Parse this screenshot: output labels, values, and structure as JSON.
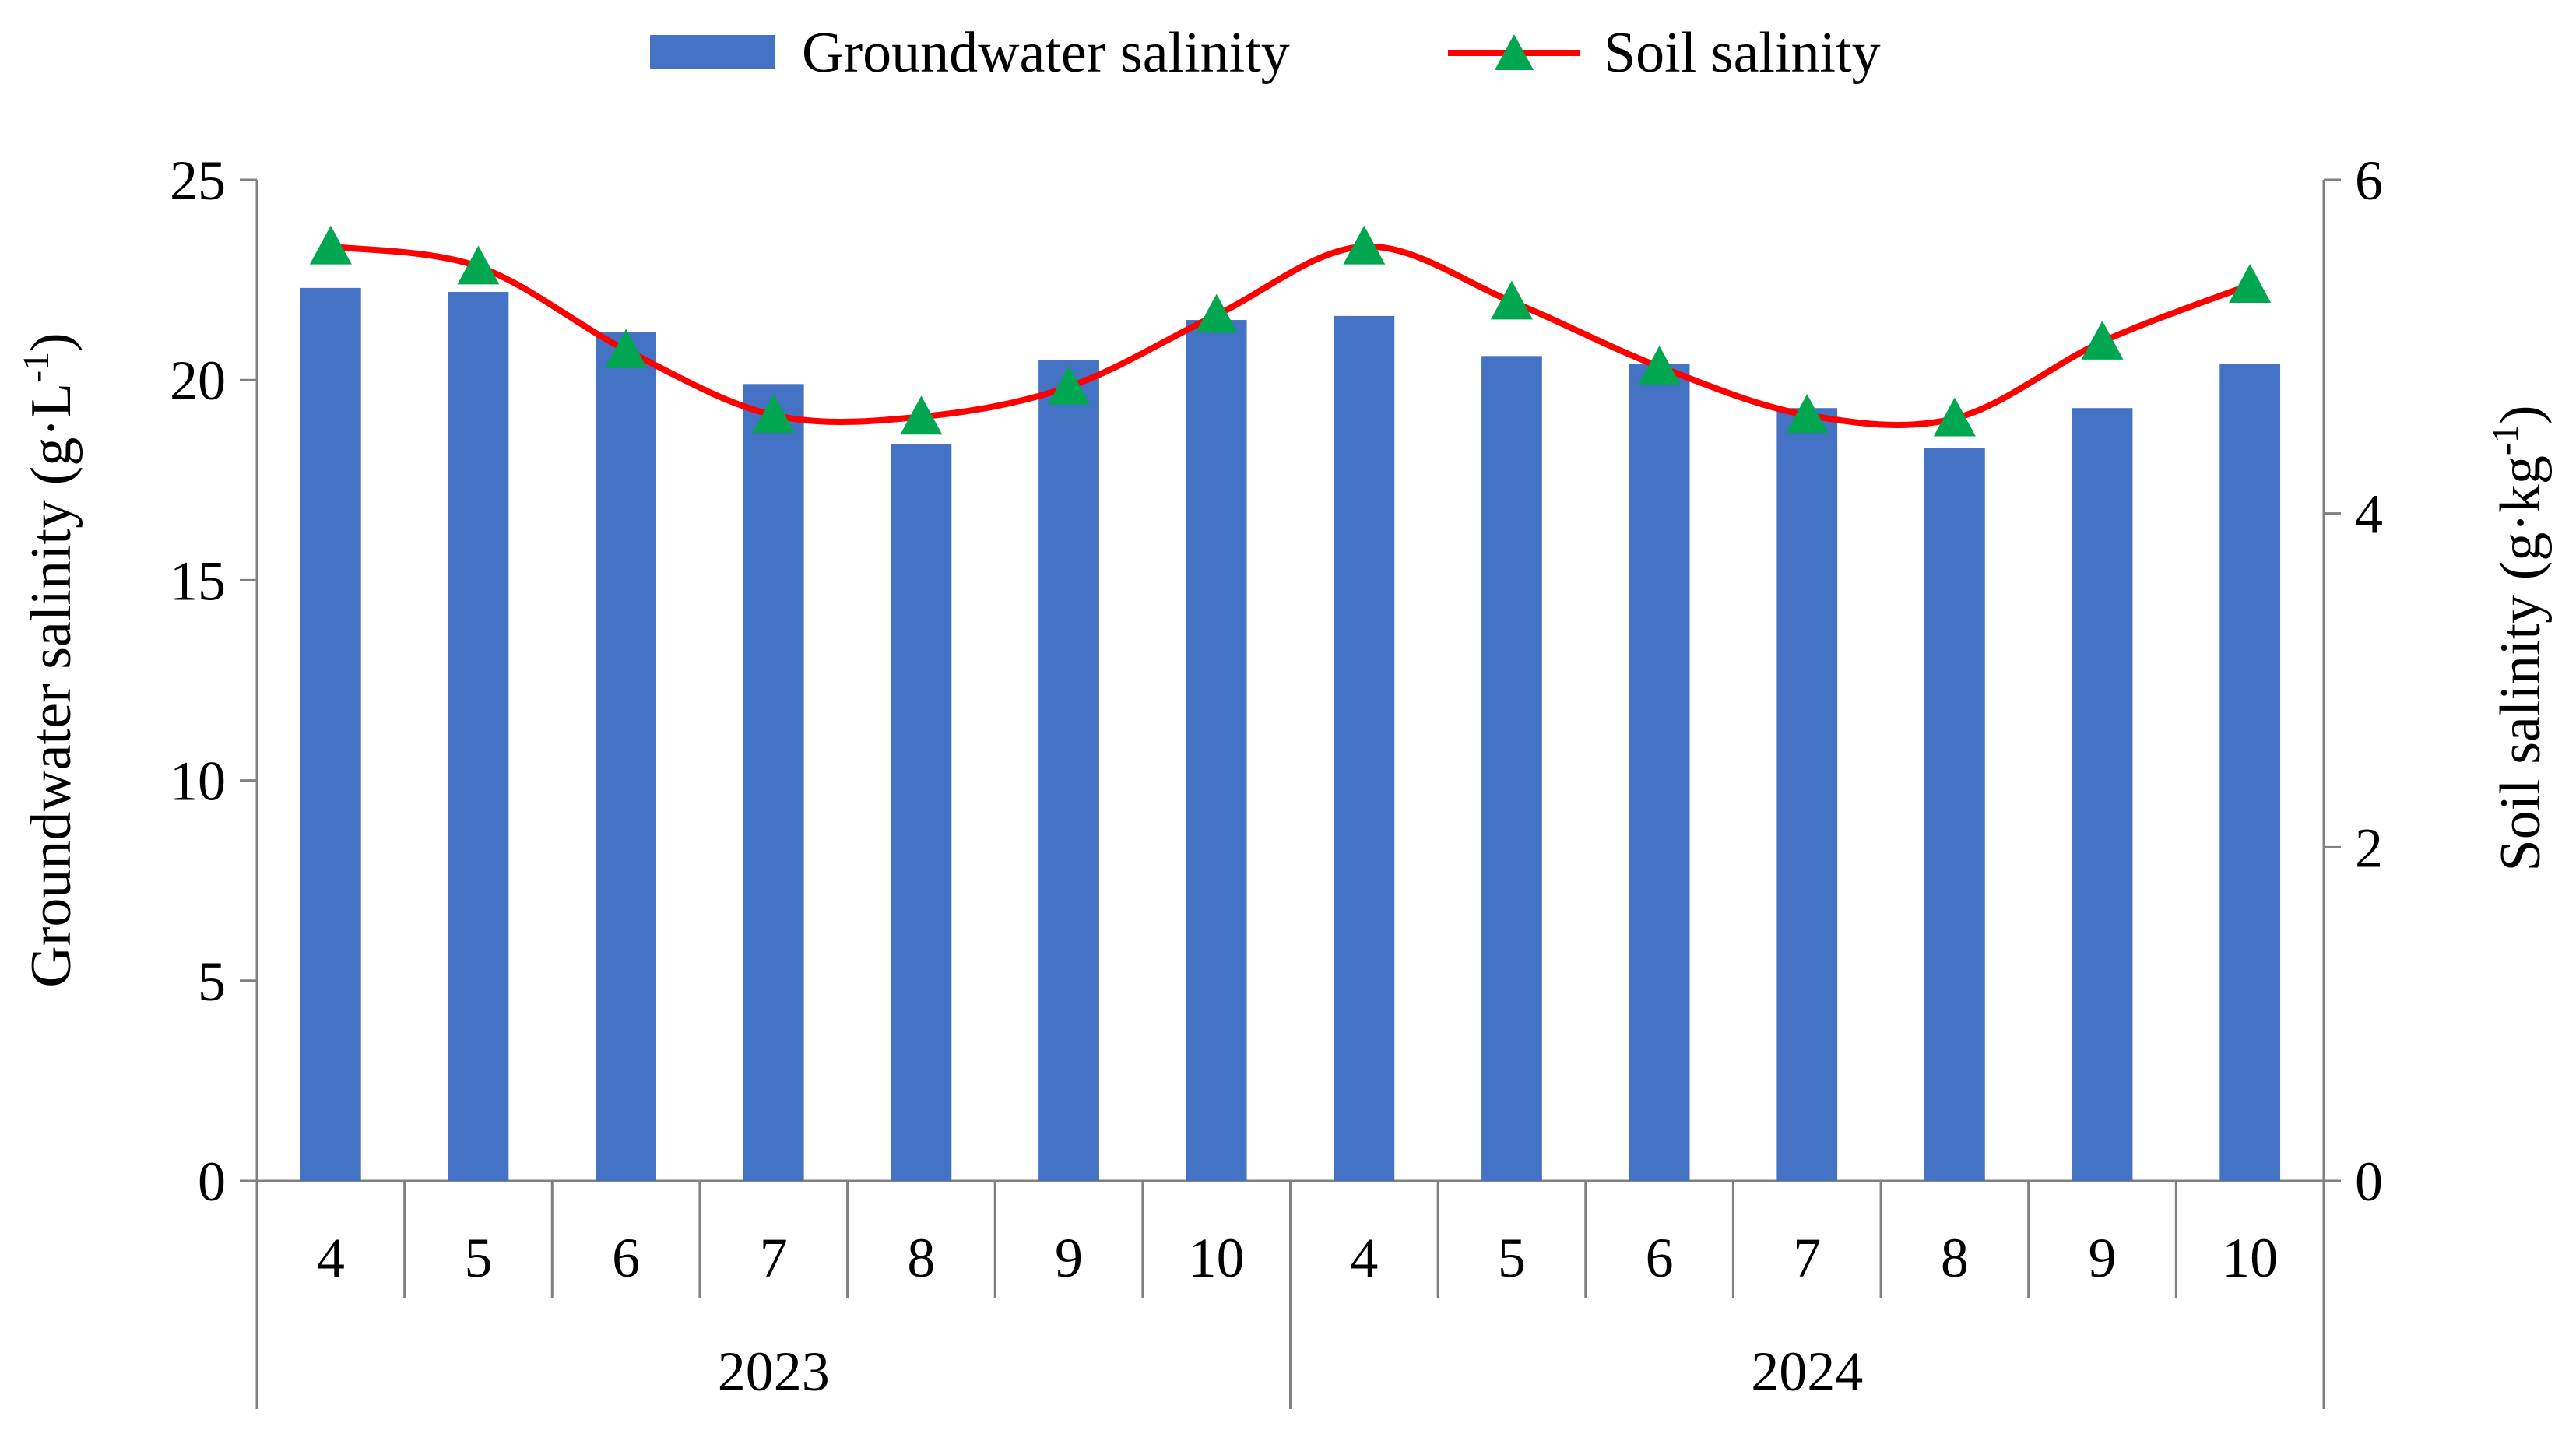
{
  "chart_data": {
    "type": "bar",
    "categories": [
      "4",
      "5",
      "6",
      "7",
      "8",
      "9",
      "10",
      "4",
      "5",
      "6",
      "7",
      "8",
      "9",
      "10"
    ],
    "groups": [
      {
        "label": "2023",
        "count": 7
      },
      {
        "label": "2024",
        "count": 7
      }
    ],
    "series": [
      {
        "name": "Groundwater salinity",
        "type": "bar",
        "axis": "left",
        "color": "#4472C4",
        "values": [
          22.3,
          22.2,
          21.2,
          19.9,
          18.4,
          20.5,
          21.5,
          21.6,
          20.6,
          20.4,
          19.3,
          18.3,
          19.3,
          20.4
        ]
      },
      {
        "name": "Soil salinity",
        "type": "line",
        "axis": "right",
        "color": "#FF0000",
        "marker_color": "#00A650",
        "values": [
          5.6,
          5.48,
          4.98,
          4.59,
          4.58,
          4.76,
          5.19,
          5.6,
          5.27,
          4.88,
          4.59,
          4.57,
          5.03,
          5.37
        ]
      }
    ],
    "y_left": {
      "label": "Groundwater salinity (g·L",
      "label_sup": "-1",
      "label_end": ")",
      "ylim": [
        0,
        25
      ],
      "ticks": [
        0,
        5,
        10,
        15,
        20,
        25
      ]
    },
    "y_right": {
      "label": "Soil salinity (g·kg",
      "label_sup": "-1",
      "label_end": ")",
      "ylim": [
        0,
        6
      ],
      "ticks": [
        0,
        2,
        4,
        6
      ]
    },
    "legend": {
      "position": "top-center",
      "entries": [
        "Groundwater salinity",
        "Soil salinity"
      ]
    },
    "grid": false
  }
}
